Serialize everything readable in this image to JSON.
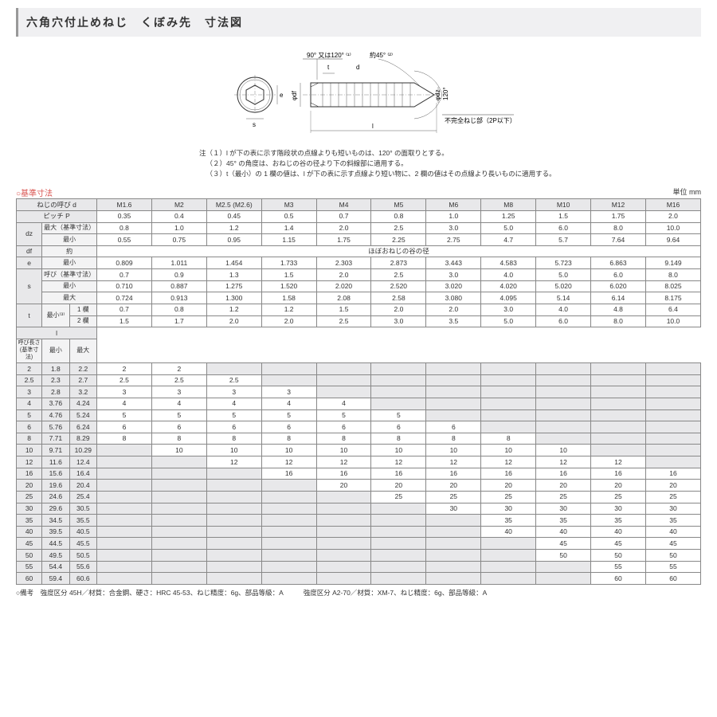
{
  "title": "六角穴付止めねじ　くぼみ先　寸法図",
  "diagram": {
    "label_90_120": "90° 又は120° ⁽¹⁾",
    "label_45": "約45° ⁽²⁾",
    "label_t": "t",
    "label_d": "d",
    "label_e": "e",
    "label_s": "s",
    "label_phidf": "φdf",
    "label_phidz": "φdz",
    "label_120": "120°",
    "label_l": "l",
    "label_incomplete": "不完全ねじ部（2P以下）"
  },
  "notes": {
    "prefix": "注",
    "n1": "（１）l が下の表に示す階段状の点線よりも短いものは、120° の面取りとする。",
    "n2": "（２）45° の角度は、おねじの谷の径より下の斜線部に適用する。",
    "n3": "（３）t（最小）の 1 欄の値は、l が下の表に示す点線より短い物に、2 欄の値はその点線より長いものに適用する。"
  },
  "section_label": "○基準寸法",
  "unit_label": "単位 mm",
  "col_headers": [
    "M1.6",
    "M2",
    "M2.5 (M2.6)",
    "M3",
    "M4",
    "M5",
    "M6",
    "M8",
    "M10",
    "M12",
    "M16"
  ],
  "row_labels": {
    "thread_d": "ねじの呼び d",
    "pitch_p": "ピッチ  P",
    "dz": "dz",
    "dz_max": "最大（基準寸法）",
    "dz_min": "最小",
    "df": "df",
    "df_approx": "約",
    "df_note": "ほぼおねじの谷の径",
    "e": "e",
    "e_min": "最小",
    "s": "s",
    "s_nom": "呼び（基準寸法）",
    "s_min": "最小",
    "s_max": "最大",
    "t": "t",
    "t_min": "最小⁽³⁾",
    "t_col1": "1 欄",
    "t_col2": "2 欄",
    "l": "l",
    "len_hdr": "呼び長さ\n(基準寸法)",
    "min": "最小",
    "max": "最大"
  },
  "rows": {
    "pitch": [
      "0.35",
      "0.4",
      "0.45",
      "0.5",
      "0.7",
      "0.8",
      "1.0",
      "1.25",
      "1.5",
      "1.75",
      "2.0"
    ],
    "dz_max": [
      "0.8",
      "1.0",
      "1.2",
      "1.4",
      "2.0",
      "2.5",
      "3.0",
      "5.0",
      "6.0",
      "8.0",
      "10.0"
    ],
    "dz_min": [
      "0.55",
      "0.75",
      "0.95",
      "1.15",
      "1.75",
      "2.25",
      "2.75",
      "4.7",
      "5.7",
      "7.64",
      "9.64"
    ],
    "e_min": [
      "0.809",
      "1.011",
      "1.454",
      "1.733",
      "2.303",
      "2.873",
      "3.443",
      "4.583",
      "5.723",
      "6.863",
      "9.149"
    ],
    "s_nom": [
      "0.7",
      "0.9",
      "1.3",
      "1.5",
      "2.0",
      "2.5",
      "3.0",
      "4.0",
      "5.0",
      "6.0",
      "8.0"
    ],
    "s_min": [
      "0.710",
      "0.887",
      "1.275",
      "1.520",
      "2.020",
      "2.520",
      "3.020",
      "4.020",
      "5.020",
      "6.020",
      "8.025"
    ],
    "s_max": [
      "0.724",
      "0.913",
      "1.300",
      "1.58",
      "2.08",
      "2.58",
      "3.080",
      "4.095",
      "5.14",
      "6.14",
      "8.175"
    ],
    "t1": [
      "0.7",
      "0.8",
      "1.2",
      "1.2",
      "1.5",
      "2.0",
      "2.0",
      "3.0",
      "4.0",
      "4.8",
      "6.4"
    ],
    "t2": [
      "1.5",
      "1.7",
      "2.0",
      "2.0",
      "2.5",
      "3.0",
      "3.5",
      "5.0",
      "6.0",
      "8.0",
      "10.0"
    ]
  },
  "length_rows": [
    {
      "n": "2",
      "min": "1.8",
      "max": "2.2",
      "v": [
        "2",
        "2",
        "",
        "",
        "",
        "",
        "",
        "",
        "",
        "",
        ""
      ],
      "stop": 2
    },
    {
      "n": "2.5",
      "min": "2.3",
      "max": "2.7",
      "v": [
        "2.5",
        "2.5",
        "2.5",
        "",
        "",
        "",
        "",
        "",
        "",
        "",
        ""
      ],
      "stop": 3
    },
    {
      "n": "3",
      "min": "2.8",
      "max": "3.2",
      "v": [
        "3",
        "3",
        "3",
        "3",
        "",
        "",
        "",
        "",
        "",
        "",
        ""
      ],
      "stop": 4
    },
    {
      "n": "4",
      "min": "3.76",
      "max": "4.24",
      "v": [
        "4",
        "4",
        "4",
        "4",
        "4",
        "",
        "",
        "",
        "",
        "",
        ""
      ],
      "stop": 5
    },
    {
      "n": "5",
      "min": "4.76",
      "max": "5.24",
      "v": [
        "5",
        "5",
        "5",
        "5",
        "5",
        "5",
        "",
        "",
        "",
        "",
        ""
      ],
      "stop": 6
    },
    {
      "n": "6",
      "min": "5.76",
      "max": "6.24",
      "v": [
        "6",
        "6",
        "6",
        "6",
        "6",
        "6",
        "6",
        "",
        "",
        "",
        ""
      ],
      "stop": 7
    },
    {
      "n": "8",
      "min": "7.71",
      "max": "8.29",
      "v": [
        "8",
        "8",
        "8",
        "8",
        "8",
        "8",
        "8",
        "8",
        "",
        "",
        ""
      ],
      "stop": 8
    },
    {
      "n": "10",
      "min": "9.71",
      "max": "10.29",
      "v": [
        "",
        "10",
        "10",
        "10",
        "10",
        "10",
        "10",
        "10",
        "10",
        "",
        ""
      ],
      "stop": 9
    },
    {
      "n": "12",
      "min": "11.6",
      "max": "12.4",
      "v": [
        "",
        "",
        "12",
        "12",
        "12",
        "12",
        "12",
        "12",
        "12",
        "12",
        ""
      ],
      "stop": 10
    },
    {
      "n": "16",
      "min": "15.6",
      "max": "16.4",
      "v": [
        "",
        "",
        "",
        "16",
        "16",
        "16",
        "16",
        "16",
        "16",
        "16",
        "16"
      ],
      "stop": 11
    },
    {
      "n": "20",
      "min": "19.6",
      "max": "20.4",
      "v": [
        "",
        "",
        "",
        "",
        "20",
        "20",
        "20",
        "20",
        "20",
        "20",
        "20"
      ],
      "stop": 11
    },
    {
      "n": "25",
      "min": "24.6",
      "max": "25.4",
      "v": [
        "",
        "",
        "",
        "",
        "",
        "25",
        "25",
        "25",
        "25",
        "25",
        "25"
      ],
      "stop": 11
    },
    {
      "n": "30",
      "min": "29.6",
      "max": "30.5",
      "v": [
        "",
        "",
        "",
        "",
        "",
        "",
        "30",
        "30",
        "30",
        "30",
        "30"
      ],
      "stop": 11
    },
    {
      "n": "35",
      "min": "34.5",
      "max": "35.5",
      "v": [
        "",
        "",
        "",
        "",
        "",
        "",
        "",
        "35",
        "35",
        "35",
        "35"
      ],
      "stop": 11
    },
    {
      "n": "40",
      "min": "39.5",
      "max": "40.5",
      "v": [
        "",
        "",
        "",
        "",
        "",
        "",
        "",
        "40",
        "40",
        "40",
        "40"
      ],
      "stop": 11
    },
    {
      "n": "45",
      "min": "44.5",
      "max": "45.5",
      "v": [
        "",
        "",
        "",
        "",
        "",
        "",
        "",
        "",
        "45",
        "45",
        "45"
      ],
      "stop": 11
    },
    {
      "n": "50",
      "min": "49.5",
      "max": "50.5",
      "v": [
        "",
        "",
        "",
        "",
        "",
        "",
        "",
        "",
        "50",
        "50",
        "50"
      ],
      "stop": 11
    },
    {
      "n": "55",
      "min": "54.4",
      "max": "55.6",
      "v": [
        "",
        "",
        "",
        "",
        "",
        "",
        "",
        "",
        "",
        "55",
        "55"
      ],
      "stop": 11
    },
    {
      "n": "60",
      "min": "59.4",
      "max": "60.6",
      "v": [
        "",
        "",
        "",
        "",
        "",
        "",
        "",
        "",
        "",
        "60",
        "60"
      ],
      "stop": 11
    }
  ],
  "footnote": "○備考　強度区分 45H／材質：合金鋼、硬さ：HRC 45-53、ねじ精度：6g、部品等級：A　　　強度区分 A2-70／材質：XM-7、ねじ精度：6g、部品等級：A"
}
